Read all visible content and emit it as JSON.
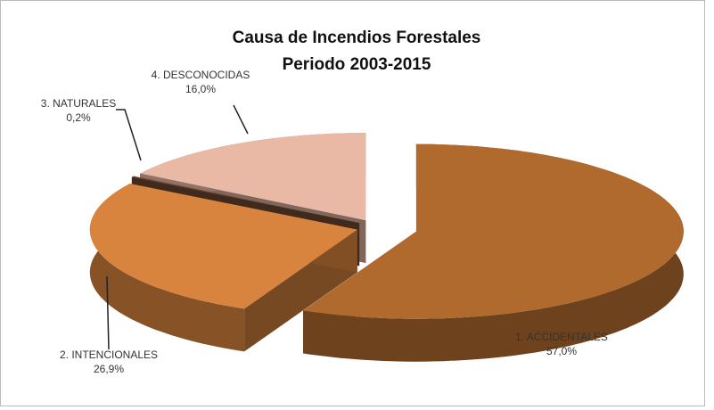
{
  "chart_data": {
    "type": "pie3d",
    "title": "Causa de Incendios Forestales",
    "subtitle": "Periodo 2003-2015",
    "categories": [
      "1. ACCIDENTALES",
      "2. INTENCIONALES",
      "3. NATURALES",
      "4. DESCONOCIDAS"
    ],
    "values": [
      57.0,
      26.9,
      0.2,
      16.0
    ],
    "value_labels": [
      "57,0%",
      "26,9%",
      "0,2%",
      "16,0%"
    ],
    "colors": [
      "#b06a2e",
      "#d9843e",
      "#6b4530",
      "#e9b9a5"
    ]
  }
}
